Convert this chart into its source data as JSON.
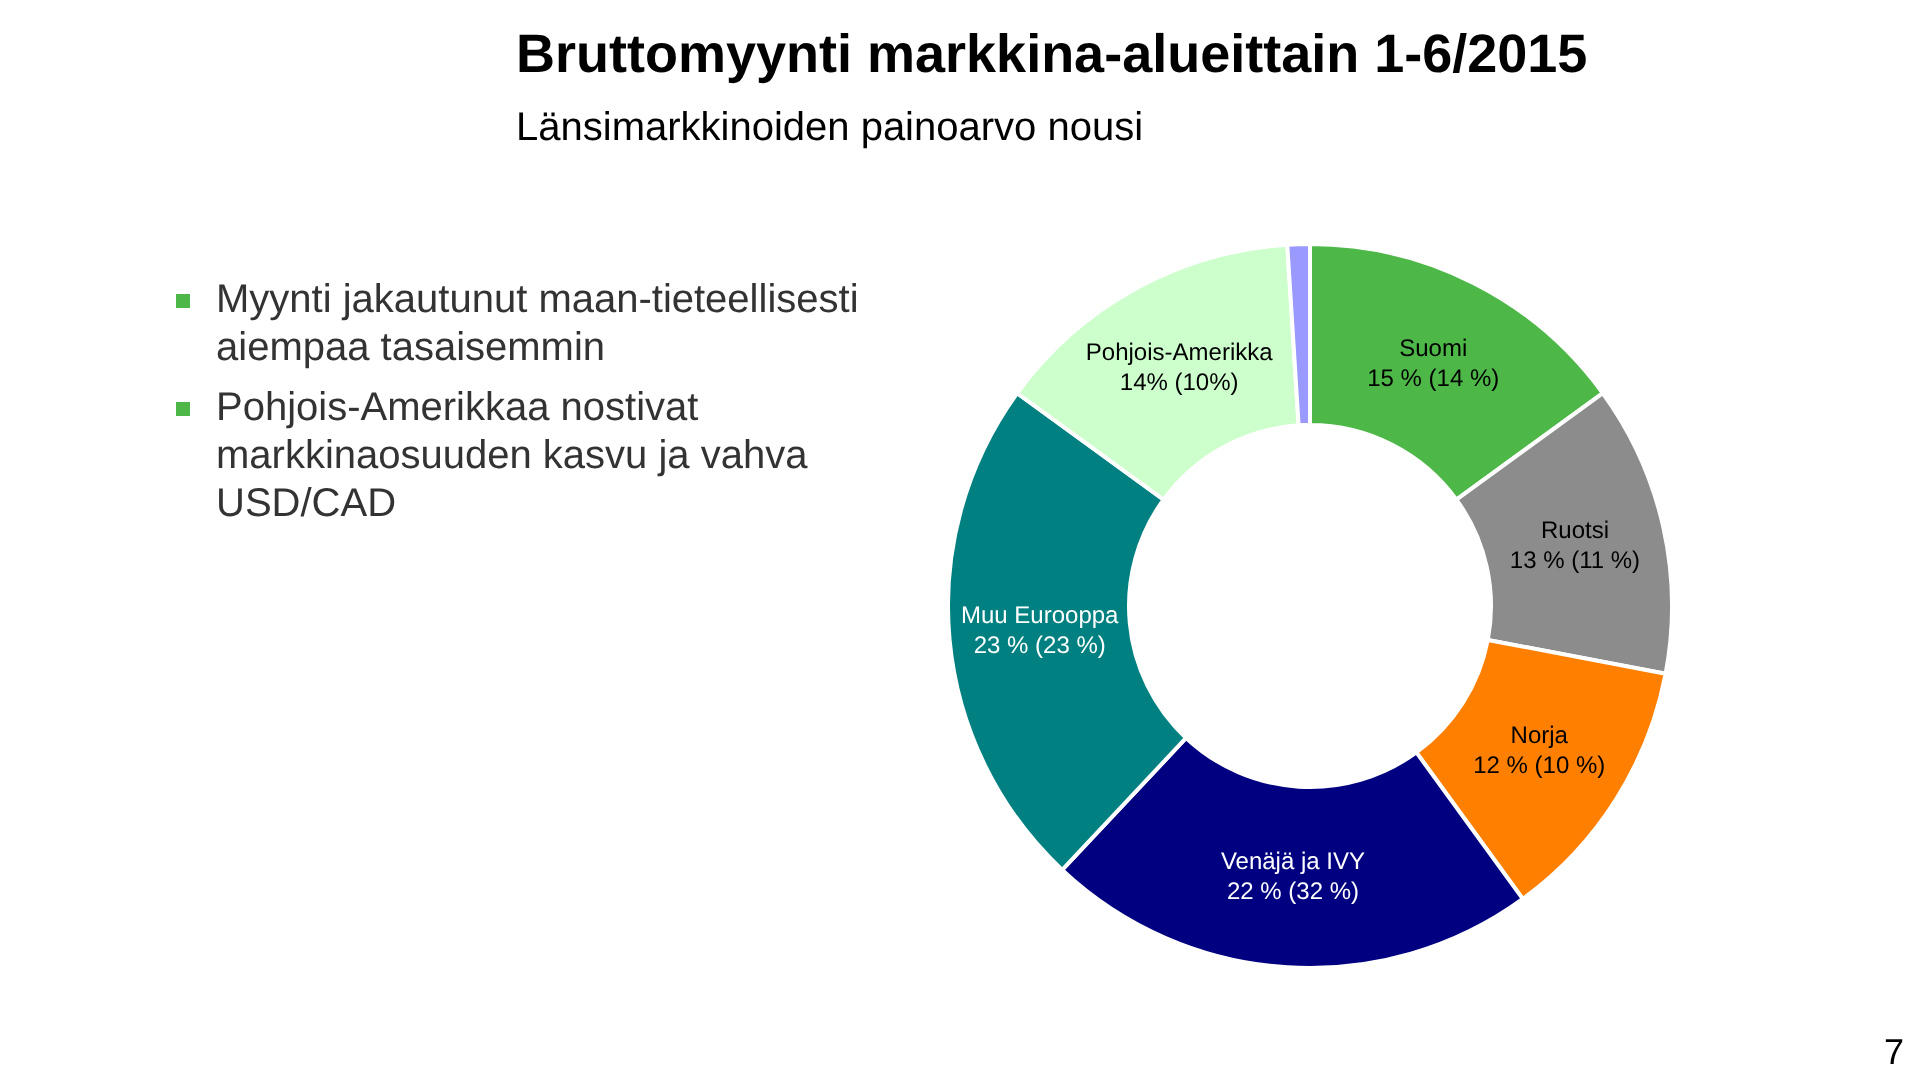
{
  "chart_data": {
    "type": "donut",
    "title": "Bruttomyynti markkina-alueittain 1-6/2015",
    "subtitle": "Länsimarkkinoiden painoarvo nousi",
    "categories": [
      "Suomi",
      "Ruotsi",
      "Norja",
      "Venäjä ja IVY",
      "Muu Eurooppa",
      "Pohjois-Amerikka",
      null
    ],
    "values": [
      15,
      13,
      12,
      22,
      23,
      14,
      1
    ],
    "value_labels": [
      "15 % (14 %)",
      "13 % (11 %)",
      "12 % (10 %)",
      "22 % (32 %)",
      "23 % (23 %)",
      "14% (10%)",
      null
    ],
    "colors": [
      "#4db848",
      "#8c8c8c",
      "#ff7f00",
      "#000080",
      "#008080",
      "#ccffcc",
      "#9999ff"
    ],
    "annotations": [
      "Myynti jakautunut maan-tieteellisesti aiempaa tasaisemmin",
      "Pohjois-Amerikkaa nostivat markkinaosuuden kasvu ja vahva USD/CAD",
      "7"
    ],
    "legend": false
  }
}
